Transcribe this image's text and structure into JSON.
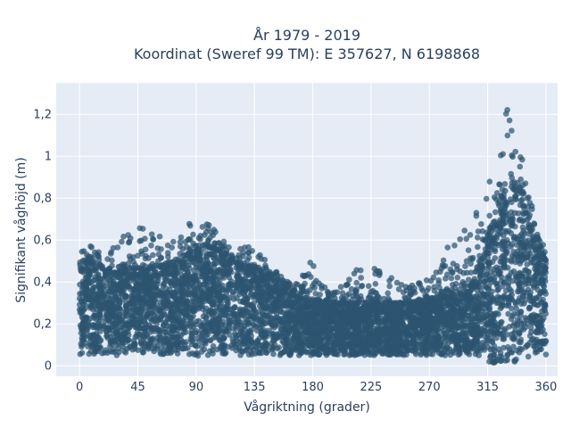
{
  "chart_data": {
    "type": "scatter",
    "title_line1": "År 1979 - 2019",
    "title_line2": "Koordinat (Sweref 99 TM): E 357627, N 6198868",
    "xlabel": "Vågriktning (grader)",
    "ylabel": "Signifikant våghöjd (m)",
    "xlim": [
      -18,
      369
    ],
    "ylim": [
      -0.05,
      1.35
    ],
    "x_ticks": [
      0,
      45,
      90,
      135,
      180,
      225,
      270,
      315,
      360
    ],
    "y_ticks": [
      0,
      0.2,
      0.4,
      0.6,
      0.8,
      1,
      1.2
    ],
    "y_tick_labels": [
      "0",
      "0,2",
      "0,4",
      "0,6",
      "0,8",
      "1",
      "1,2"
    ],
    "grid": true,
    "marker_color": "#2d5570",
    "plot_bg": "#e5ecf6",
    "series_envelope": {
      "direction_deg": [
        0,
        10,
        20,
        30,
        45,
        60,
        75,
        90,
        100,
        110,
        120,
        135,
        150,
        165,
        180,
        195,
        210,
        225,
        240,
        255,
        270,
        285,
        300,
        310,
        320,
        330,
        335,
        340,
        350,
        360
      ],
      "dense_max_m": [
        0.48,
        0.5,
        0.45,
        0.44,
        0.46,
        0.47,
        0.5,
        0.55,
        0.57,
        0.54,
        0.49,
        0.47,
        0.42,
        0.35,
        0.31,
        0.3,
        0.3,
        0.3,
        0.3,
        0.3,
        0.32,
        0.34,
        0.38,
        0.5,
        0.72,
        0.85,
        0.88,
        0.82,
        0.6,
        0.5
      ],
      "outlier_max_m": [
        0.56,
        0.58,
        0.55,
        0.6,
        0.69,
        0.62,
        0.63,
        0.71,
        0.68,
        0.6,
        0.56,
        0.6,
        0.47,
        0.38,
        0.53,
        0.35,
        0.46,
        0.47,
        0.45,
        0.38,
        0.44,
        0.61,
        0.7,
        0.75,
        1.02,
        1.29,
        1.23,
        1.05,
        0.75,
        0.55
      ],
      "min_m": [
        0.05,
        0.04,
        0.05,
        0.05,
        0.05,
        0.05,
        0.05,
        0.04,
        0.05,
        0.05,
        0.05,
        0.05,
        0.05,
        0.05,
        0.05,
        0.05,
        0.05,
        0.05,
        0.05,
        0.05,
        0.05,
        0.05,
        0.05,
        0.04,
        0.0,
        0.0,
        0.01,
        0.03,
        0.05,
        0.05
      ]
    }
  }
}
